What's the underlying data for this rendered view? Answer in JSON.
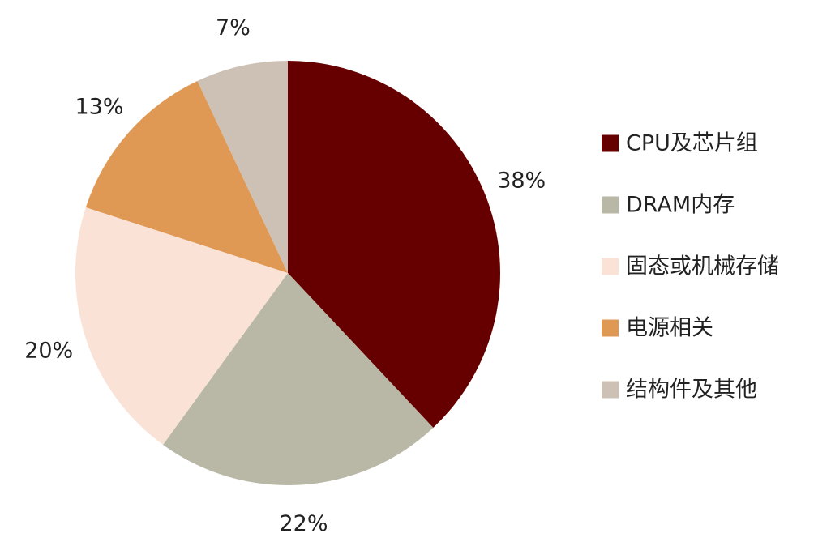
{
  "chart_data": {
    "type": "pie",
    "title": "",
    "start_angle_deg": 0,
    "direction": "clockwise",
    "legend_position": "right",
    "slices": [
      {
        "label": "CPU及芯片组",
        "value": 38,
        "value_label": "38%",
        "color": "#660000"
      },
      {
        "label": "DRAM内存",
        "value": 22,
        "value_label": "22%",
        "color": "#b9b8a6"
      },
      {
        "label": "固态或机械存储",
        "value": 20,
        "value_label": "20%",
        "color": "#fae3d6"
      },
      {
        "label": "电源相关",
        "value": 13,
        "value_label": "13%",
        "color": "#df9955"
      },
      {
        "label": "结构件及其他",
        "value": 7,
        "value_label": "7%",
        "color": "#cdc1b5"
      }
    ]
  }
}
